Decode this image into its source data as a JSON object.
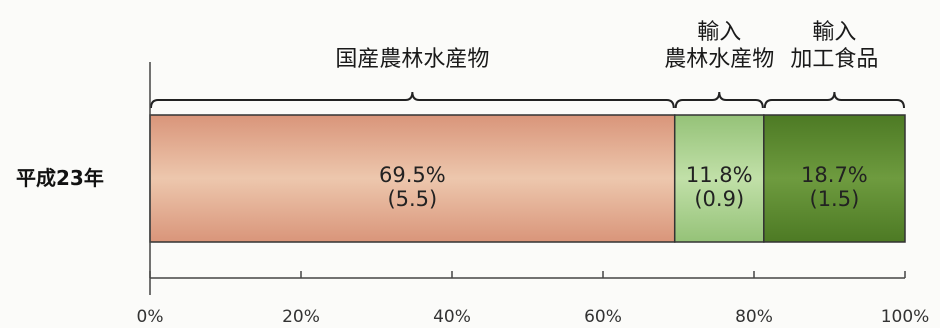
{
  "chart_data": {
    "type": "bar",
    "orientation": "horizontal",
    "stacked": true,
    "categories": [
      "平成23年"
    ],
    "series": [
      {
        "name": "国産農林水産物",
        "values": [
          69.5
        ],
        "amount": "(5.5)",
        "color": "#e2a788"
      },
      {
        "name": "輸入農林水産物",
        "values": [
          11.8
        ],
        "amount": "(0.9)",
        "color": "#a9d08e"
      },
      {
        "name": "輸入加工食品",
        "values": [
          18.7
        ],
        "amount": "(1.5)",
        "color": "#5c8a2e"
      }
    ],
    "group_labels": [
      {
        "lines": [
          "国産農林水産物"
        ]
      },
      {
        "lines": [
          "輸入",
          "農林水産物"
        ]
      },
      {
        "lines": [
          "輸入",
          "加工食品"
        ]
      }
    ],
    "xlim": [
      0,
      100
    ],
    "x_ticks": [
      "0%",
      "20%",
      "40%",
      "60%",
      "80%",
      "100%"
    ],
    "title": "",
    "xlabel": "",
    "ylabel": "",
    "grid": false
  }
}
